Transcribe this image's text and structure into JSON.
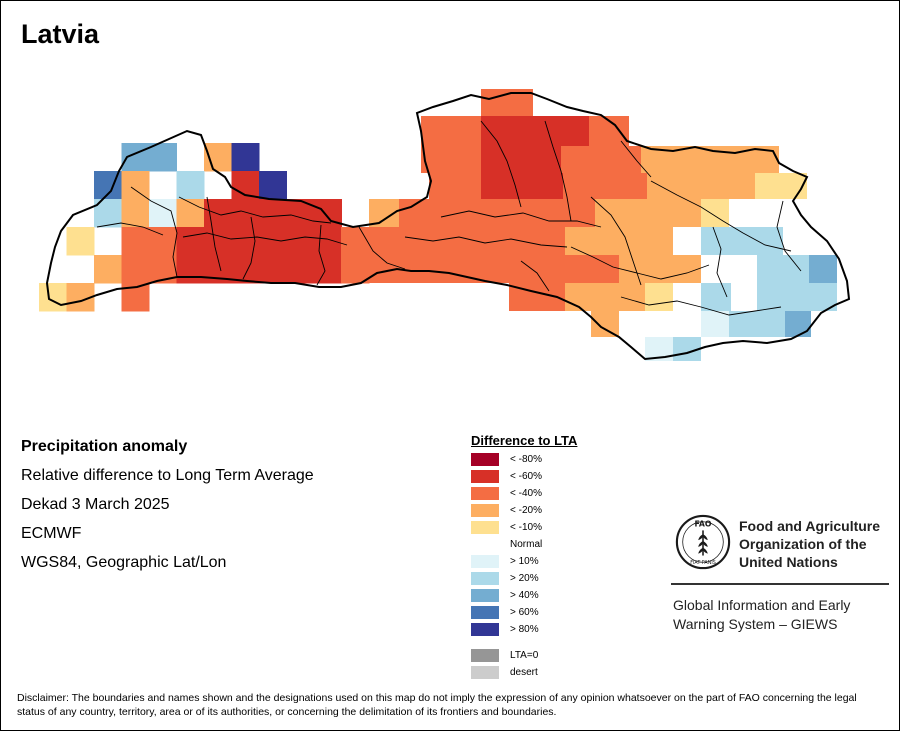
{
  "title": "Latvia",
  "info": {
    "heading": "Precipitation anomaly",
    "subtitle": "Relative difference to Long Term Average",
    "period": "Dekad 3 March 2025",
    "source": "ECMWF",
    "projection": "WGS84, Geographic Lat/Lon"
  },
  "legend": {
    "title": "Difference to LTA",
    "items": [
      {
        "label": "< -80%",
        "color": "#a50026"
      },
      {
        "label": "< -60%",
        "color": "#d73027"
      },
      {
        "label": "< -40%",
        "color": "#f46d43"
      },
      {
        "label": "< -20%",
        "color": "#fdae61"
      },
      {
        "label": "< -10%",
        "color": "#fee090"
      },
      {
        "label": "Normal",
        "color": "#ffffff"
      },
      {
        "label": "> 10%",
        "color": "#e0f3f8"
      },
      {
        "label": "> 20%",
        "color": "#abd9e9"
      },
      {
        "label": "> 40%",
        "color": "#74add1"
      },
      {
        "label": "> 60%",
        "color": "#4575b4"
      },
      {
        "label": "> 80%",
        "color": "#313695"
      }
    ],
    "extra": [
      {
        "label": "LTA=0",
        "color": "#969696"
      },
      {
        "label": "desert",
        "color": "#cccccc"
      }
    ]
  },
  "org": {
    "name_line1": "Food and Agriculture",
    "name_line2": "Organization of the",
    "name_line3": "United Nations",
    "system_line1": "Global Information and Early",
    "system_line2": "Warning System – GIEWS",
    "logo_text": "FAO",
    "logo_motto": "FIAT PANIS"
  },
  "disclaimer": "Disclaimer: The boundaries and names shown and the designations used on this map do not imply the expression of any opinion whatsoever on the part of FAO concerning the legal status of any country, territory, area or of its authorities, or concerning the delimitation of its frontiers and boundaries.",
  "map_cells": [
    {
      "c": "#74add1",
      "r": 0,
      "k": 3
    },
    {
      "c": "#74add1",
      "r": 0,
      "k": 4
    },
    {
      "c": "#fdae61",
      "r": 0,
      "k": 6
    },
    {
      "c": "#313695",
      "r": 0,
      "k": 7
    },
    {
      "c": "#4575b4",
      "r": 1,
      "k": 2
    },
    {
      "c": "#fdae61",
      "r": 1,
      "k": 3
    },
    {
      "c": "#abd9e9",
      "r": 1,
      "k": 5
    },
    {
      "c": "#d73027",
      "r": 1,
      "k": 7
    },
    {
      "c": "#313695",
      "r": 1,
      "k": 8
    },
    {
      "c": "#abd9e9",
      "r": 2,
      "k": 2
    },
    {
      "c": "#fdae61",
      "r": 2,
      "k": 3
    },
    {
      "c": "#e0f3f8",
      "r": 2,
      "k": 4
    },
    {
      "c": "#fdae61",
      "r": 2,
      "k": 5
    },
    {
      "c": "#d73027",
      "r": 2,
      "k": 6
    },
    {
      "c": "#d73027",
      "r": 2,
      "k": 7
    },
    {
      "c": "#d73027",
      "r": 2,
      "k": 8
    },
    {
      "c": "#d73027",
      "r": 2,
      "k": 9
    },
    {
      "c": "#d73027",
      "r": 2,
      "k": 10
    },
    {
      "c": "#fee090",
      "r": 3,
      "k": 1
    },
    {
      "c": "#f46d43",
      "r": 3,
      "k": 3
    },
    {
      "c": "#f46d43",
      "r": 3,
      "k": 4
    },
    {
      "c": "#d73027",
      "r": 3,
      "k": 5
    },
    {
      "c": "#d73027",
      "r": 3,
      "k": 6
    },
    {
      "c": "#d73027",
      "r": 3,
      "k": 7
    },
    {
      "c": "#d73027",
      "r": 3,
      "k": 8
    },
    {
      "c": "#d73027",
      "r": 3,
      "k": 9
    },
    {
      "c": "#d73027",
      "r": 3,
      "k": 10
    },
    {
      "c": "#f46d43",
      "r": 3,
      "k": 11
    },
    {
      "c": "#fdae61",
      "r": 4,
      "k": 2
    },
    {
      "c": "#f46d43",
      "r": 4,
      "k": 3
    },
    {
      "c": "#f46d43",
      "r": 4,
      "k": 4
    },
    {
      "c": "#d73027",
      "r": 4,
      "k": 5
    },
    {
      "c": "#d73027",
      "r": 4,
      "k": 6
    },
    {
      "c": "#d73027",
      "r": 4,
      "k": 7
    },
    {
      "c": "#d73027",
      "r": 4,
      "k": 8
    },
    {
      "c": "#d73027",
      "r": 4,
      "k": 9
    },
    {
      "c": "#d73027",
      "r": 4,
      "k": 10
    },
    {
      "c": "#f46d43",
      "r": 4,
      "k": 11
    },
    {
      "c": "#fee090",
      "r": 5,
      "k": 0
    },
    {
      "c": "#fdae61",
      "r": 5,
      "k": 1
    },
    {
      "c": "#f46d43",
      "r": 5,
      "k": 3
    }
  ]
}
